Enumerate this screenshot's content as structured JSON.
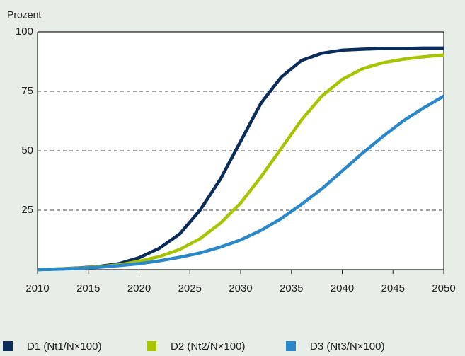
{
  "chart_data": {
    "type": "line",
    "y_axis_label": "Prozent",
    "x": [
      2010,
      2012,
      2014,
      2016,
      2018,
      2020,
      2022,
      2024,
      2026,
      2028,
      2030,
      2032,
      2034,
      2036,
      2038,
      2040,
      2042,
      2044,
      2046,
      2048,
      2050
    ],
    "series": [
      {
        "name": "D1 (Nt1/N×100)",
        "color": "#0b2d5b",
        "values": [
          0,
          0.3,
          0.7,
          1.3,
          2.5,
          5,
          9,
          15,
          25,
          38,
          54,
          70,
          81,
          88,
          91,
          92.3,
          92.7,
          93,
          93,
          93.2,
          93.2
        ]
      },
      {
        "name": "D2 (Nt2/N×100)",
        "color": "#a8c400",
        "values": [
          0,
          0.3,
          0.6,
          1.2,
          2,
          3.5,
          5.5,
          8.5,
          13,
          19.5,
          28,
          39,
          51,
          63,
          73,
          80,
          84.5,
          87,
          88.5,
          89.5,
          90.3
        ]
      },
      {
        "name": "D3 (Nt3/N×100)",
        "color": "#2a87c8",
        "values": [
          0,
          0.2,
          0.5,
          1,
          1.7,
          2.5,
          3.7,
          5.2,
          7,
          9.5,
          12.5,
          16.5,
          21.5,
          27.5,
          34,
          41.5,
          49,
          56,
          62.5,
          68,
          73
        ]
      }
    ],
    "xlim": [
      2010,
      2050
    ],
    "xticks": [
      2010,
      2015,
      2020,
      2025,
      2030,
      2035,
      2040,
      2045,
      2050
    ],
    "ylim": [
      0,
      100
    ],
    "yticks": [
      25,
      50,
      75,
      100
    ],
    "grid": true,
    "legend": "bottom"
  }
}
